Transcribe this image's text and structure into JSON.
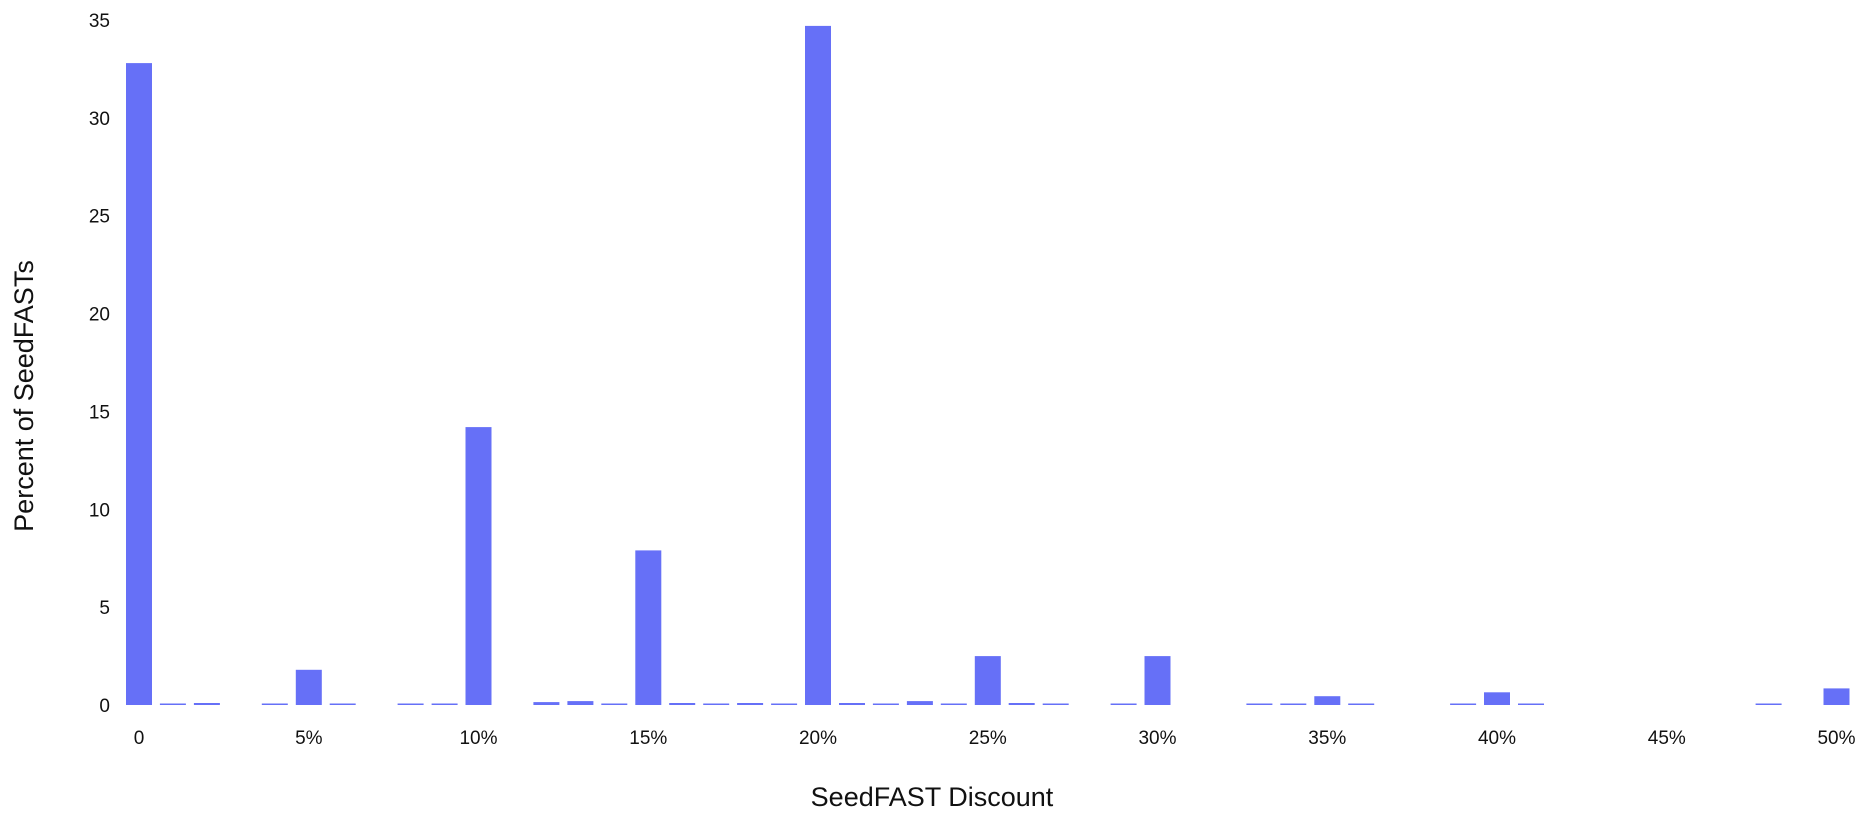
{
  "chart_data": {
    "type": "bar",
    "title": "",
    "xlabel": "SeedFAST Discount",
    "ylabel": "Percent of SeedFASTs",
    "ylim": [
      0,
      35
    ],
    "yticks": [
      "0",
      "5",
      "10",
      "15",
      "20",
      "25",
      "30",
      "35"
    ],
    "xticks": [
      {
        "label": "0",
        "value": 0
      },
      {
        "label": "5%",
        "value": 5
      },
      {
        "label": "10%",
        "value": 10
      },
      {
        "label": "15%",
        "value": 15
      },
      {
        "label": "20%",
        "value": 20
      },
      {
        "label": "25%",
        "value": 25
      },
      {
        "label": "30%",
        "value": 30
      },
      {
        "label": "35%",
        "value": 35
      },
      {
        "label": "40%",
        "value": 40
      },
      {
        "label": "45%",
        "value": 45
      },
      {
        "label": "50%",
        "value": 50
      }
    ],
    "x": [
      0,
      1,
      2,
      3,
      4,
      5,
      6,
      7,
      8,
      9,
      10,
      11,
      12,
      13,
      14,
      15,
      16,
      17,
      18,
      19,
      20,
      21,
      22,
      23,
      24,
      25,
      26,
      27,
      28,
      29,
      30,
      31,
      32,
      33,
      34,
      35,
      36,
      37,
      38,
      39,
      40,
      41,
      42,
      43,
      44,
      45,
      46,
      47,
      48,
      49,
      50
    ],
    "values": [
      32.8,
      0.05,
      0.1,
      0.0,
      0.05,
      1.8,
      0.05,
      0.0,
      0.05,
      0.05,
      14.2,
      0.0,
      0.15,
      0.2,
      0.05,
      7.9,
      0.1,
      0.05,
      0.1,
      0.05,
      34.7,
      0.1,
      0.05,
      0.2,
      0.05,
      2.5,
      0.1,
      0.05,
      0.0,
      0.05,
      2.5,
      0.0,
      0.0,
      0.05,
      0.05,
      0.45,
      0.05,
      0.0,
      0.0,
      0.05,
      0.65,
      0.05,
      0.0,
      0.0,
      0.0,
      0.0,
      0.0,
      0.0,
      0.05,
      0.0,
      0.85
    ],
    "bar_color": "#6670f7",
    "grid": false,
    "legend": "none"
  }
}
